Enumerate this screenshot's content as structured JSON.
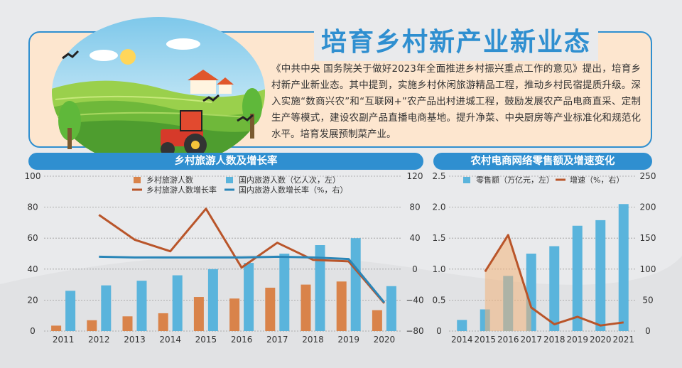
{
  "header": {
    "title": "培育乡村新产业新业态",
    "intro": "《中共中央 国务院关于做好2023年全面推进乡村振兴重点工作的意见》提出，培育乡村新产业新业态。其中提到，实施乡村休闲旅游精品工程，推动乡村民宿提质升级。深入实施“数商兴农”和“互联网+”农产品出村进城工程，鼓励发展农产品电商直采、定制生产等模式，建设农副产品直播电商基地。提升净菜、中央厨房等产业标准化和规范化水平。培育发展预制菜产业。"
  },
  "colors": {
    "blue": "#5ab4dc",
    "orange": "#d9834a",
    "darkorange": "#b9552a",
    "linkblue": "#2f8fd0",
    "darkblue": "#2a86b8"
  },
  "chart_data": [
    {
      "type": "bar",
      "title": "乡村旅游人数及增长率",
      "categories": [
        "2011",
        "2012",
        "2013",
        "2014",
        "2015",
        "2016",
        "2017",
        "2018",
        "2019",
        "2020"
      ],
      "series": [
        {
          "name": "乡村旅游人数",
          "kind": "bar",
          "axis": "left",
          "color": "#d9834a",
          "values": [
            3.5,
            7,
            9.5,
            11.5,
            22,
            21,
            28,
            30,
            32,
            13.5
          ]
        },
        {
          "name": "国内旅游人数（亿人次，左）",
          "kind": "bar",
          "axis": "left",
          "color": "#5ab4dc",
          "values": [
            26,
            29.5,
            32.5,
            36,
            40,
            44,
            50,
            55.5,
            60,
            29
          ]
        },
        {
          "name": "乡村旅游人数增长率",
          "kind": "line",
          "axis": "right",
          "color": "#b9552a",
          "values": [
            null,
            70,
            38,
            23,
            78,
            2,
            34,
            12,
            10,
            -44
          ]
        },
        {
          "name": "国内旅游人数增长率（%，右）",
          "kind": "line",
          "axis": "right",
          "color": "#2a86b8",
          "values": [
            null,
            16,
            15,
            15,
            15,
            15,
            16,
            15,
            13,
            -43
          ]
        }
      ],
      "left_ticks": [
        "100",
        "80",
        "60",
        "40",
        "20",
        "0"
      ],
      "right_ticks": [
        "120",
        "80",
        "40",
        "0",
        "−40",
        "−80"
      ],
      "ylim_left": [
        0,
        100
      ],
      "ylim_right": [
        -80,
        120
      ]
    },
    {
      "type": "bar",
      "title": "农村电商网络零售额及增速变化",
      "categories": [
        "2014",
        "2015",
        "2016",
        "2017",
        "2018",
        "2019",
        "2020",
        "2021"
      ],
      "series": [
        {
          "name": "零售额（万亿元，左）",
          "kind": "bar",
          "axis": "left",
          "color": "#5ab4dc",
          "values": [
            0.18,
            0.35,
            0.89,
            1.25,
            1.37,
            1.7,
            1.79,
            2.05
          ]
        },
        {
          "name": "增速（%，右）",
          "kind": "line",
          "axis": "right",
          "color": "#b9552a",
          "values": [
            null,
            96,
            155,
            38,
            11,
            23,
            9,
            14
          ]
        }
      ],
      "left_ticks": [
        "2.5",
        "2.0",
        "1.5",
        "1.0",
        "0.5",
        "0"
      ],
      "right_ticks": [
        "250",
        "200",
        "150",
        "100",
        "50",
        "0"
      ],
      "ylim_left": [
        0,
        2.5
      ],
      "ylim_right": [
        0,
        250
      ]
    }
  ]
}
